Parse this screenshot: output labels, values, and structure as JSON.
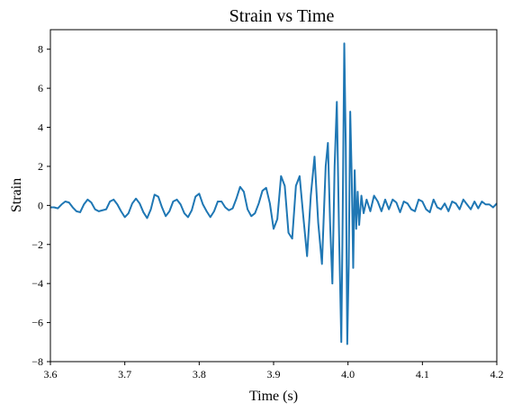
{
  "chart_data": {
    "type": "line",
    "title": "Strain vs Time",
    "xlabel": "Time (s)",
    "ylabel": "Strain",
    "xlim": [
      3.6,
      4.2
    ],
    "ylim": [
      -8,
      9
    ],
    "grid": false,
    "legend": "none",
    "colors": {
      "series": "#1f77b4"
    },
    "x_ticks": [
      3.6,
      3.7,
      3.8,
      3.9,
      4.0,
      4.1,
      4.2
    ],
    "x_tick_labels": [
      "3.6",
      "3.7",
      "3.8",
      "3.9",
      "4.0",
      "4.1",
      "4.2"
    ],
    "y_ticks": [
      -8,
      -6,
      -4,
      -2,
      0,
      2,
      4,
      6,
      8
    ],
    "y_tick_labels": [
      "−8",
      "−6",
      "−4",
      "−2",
      "0",
      "2",
      "4",
      "6",
      "8"
    ],
    "series": [
      {
        "x": [
          3.6,
          3.605,
          3.61,
          3.615,
          3.62,
          3.625,
          3.63,
          3.635,
          3.64,
          3.645,
          3.65,
          3.655,
          3.66,
          3.665,
          3.67,
          3.675,
          3.68,
          3.685,
          3.69,
          3.695,
          3.7,
          3.705,
          3.71,
          3.715,
          3.72,
          3.725,
          3.73,
          3.735,
          3.74,
          3.745,
          3.75,
          3.755,
          3.76,
          3.765,
          3.77,
          3.775,
          3.78,
          3.785,
          3.79,
          3.795,
          3.8,
          3.805,
          3.81,
          3.815,
          3.82,
          3.825,
          3.83,
          3.835,
          3.84,
          3.845,
          3.85,
          3.855,
          3.86,
          3.865,
          3.87,
          3.875,
          3.88,
          3.885,
          3.89,
          3.895,
          3.9,
          3.905,
          3.91,
          3.915,
          3.92,
          3.925,
          3.93,
          3.935,
          3.94,
          3.945,
          3.95,
          3.955,
          3.96,
          3.965,
          3.97,
          3.973,
          3.976,
          3.979,
          3.982,
          3.985,
          3.988,
          3.991,
          3.993,
          3.995,
          3.997,
          3.999,
          4.001,
          4.003,
          4.005,
          4.007,
          4.009,
          4.011,
          4.013,
          4.015,
          4.018,
          4.021,
          4.025,
          4.03,
          4.035,
          4.04,
          4.045,
          4.05,
          4.055,
          4.06,
          4.065,
          4.07,
          4.075,
          4.08,
          4.085,
          4.09,
          4.095,
          4.1,
          4.105,
          4.11,
          4.115,
          4.12,
          4.125,
          4.13,
          4.135,
          4.14,
          4.145,
          4.15,
          4.155,
          4.16,
          4.165,
          4.17,
          4.175,
          4.18,
          4.185,
          4.19,
          4.195,
          4.2
        ],
        "y": [
          -0.1,
          -0.1,
          -0.15,
          0.05,
          0.2,
          0.15,
          -0.1,
          -0.3,
          -0.35,
          0.05,
          0.3,
          0.15,
          -0.2,
          -0.3,
          -0.25,
          -0.2,
          0.2,
          0.3,
          0.05,
          -0.3,
          -0.6,
          -0.4,
          0.1,
          0.35,
          0.1,
          -0.35,
          -0.65,
          -0.2,
          0.55,
          0.45,
          -0.1,
          -0.55,
          -0.3,
          0.2,
          0.3,
          0.05,
          -0.4,
          -0.6,
          -0.25,
          0.45,
          0.6,
          0.05,
          -0.3,
          -0.6,
          -0.3,
          0.2,
          0.2,
          -0.1,
          -0.25,
          -0.15,
          0.35,
          0.95,
          0.7,
          -0.2,
          -0.55,
          -0.4,
          0.1,
          0.75,
          0.9,
          0.1,
          -1.2,
          -0.7,
          1.5,
          1.0,
          -1.4,
          -1.7,
          1.0,
          1.5,
          -0.6,
          -2.6,
          0.5,
          2.5,
          -0.9,
          -3.0,
          2.0,
          3.2,
          -1.0,
          -4.0,
          2.0,
          5.3,
          -1.5,
          -7.0,
          0.0,
          8.3,
          3.0,
          -7.1,
          -3.0,
          4.8,
          1.5,
          -3.2,
          1.8,
          -1.2,
          0.7,
          -1.0,
          0.5,
          -0.4,
          0.3,
          -0.3,
          0.5,
          0.2,
          -0.3,
          0.3,
          -0.2,
          0.3,
          0.15,
          -0.35,
          0.2,
          0.1,
          -0.2,
          -0.3,
          0.3,
          0.2,
          -0.2,
          -0.35,
          0.3,
          -0.1,
          -0.2,
          0.1,
          -0.3,
          0.2,
          0.1,
          -0.2,
          0.3,
          0.05,
          -0.2,
          0.2,
          -0.15,
          0.2,
          0.05,
          0.05,
          -0.1,
          0.1
        ]
      }
    ]
  }
}
